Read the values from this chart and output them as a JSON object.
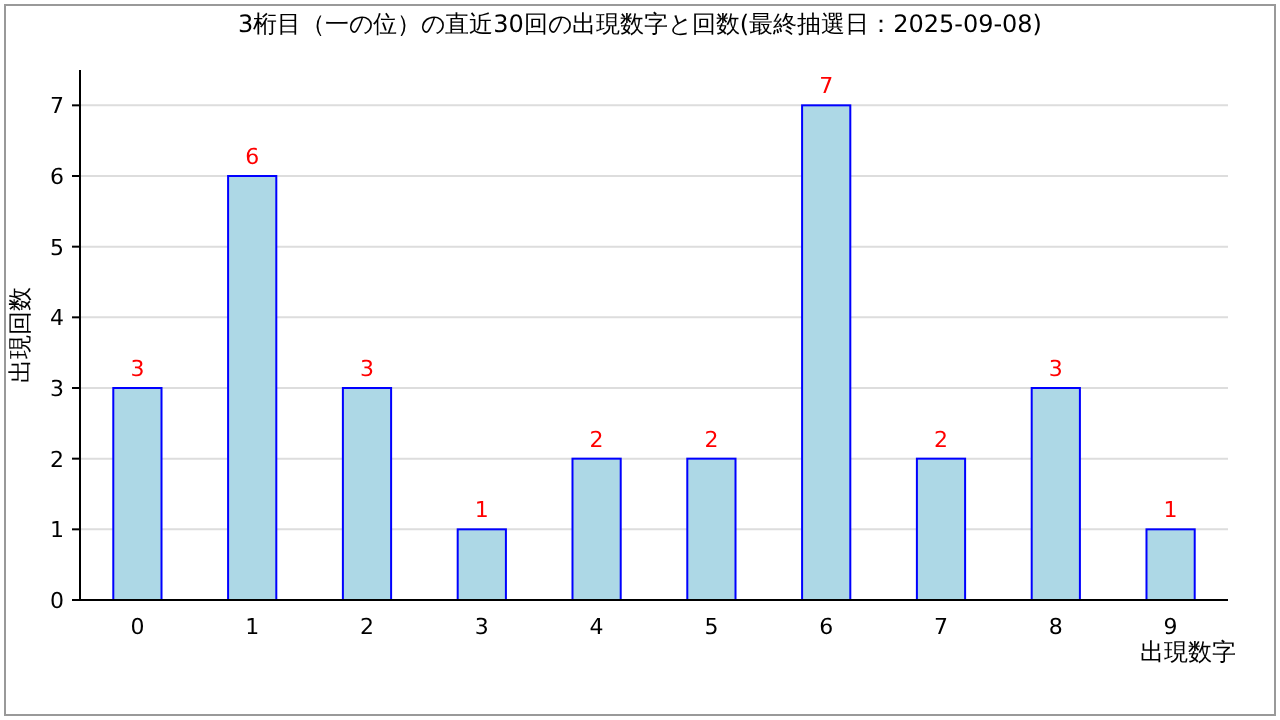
{
  "chart_data": {
    "type": "bar",
    "title": "3桁目（一の位）の直近30回の出現数字と回数(最終抽選日：2025-09-08)",
    "xlabel": "出現数字",
    "ylabel": "出現回数",
    "categories": [
      "0",
      "1",
      "2",
      "3",
      "4",
      "5",
      "6",
      "7",
      "8",
      "9"
    ],
    "values": [
      3,
      6,
      3,
      1,
      2,
      2,
      7,
      2,
      3,
      1
    ],
    "color": "#add8e6",
    "ylim": [
      0,
      7.5
    ],
    "yticks": [
      0,
      1,
      2,
      3,
      4,
      5,
      6,
      7
    ],
    "grid": "y",
    "data_labels": true
  }
}
